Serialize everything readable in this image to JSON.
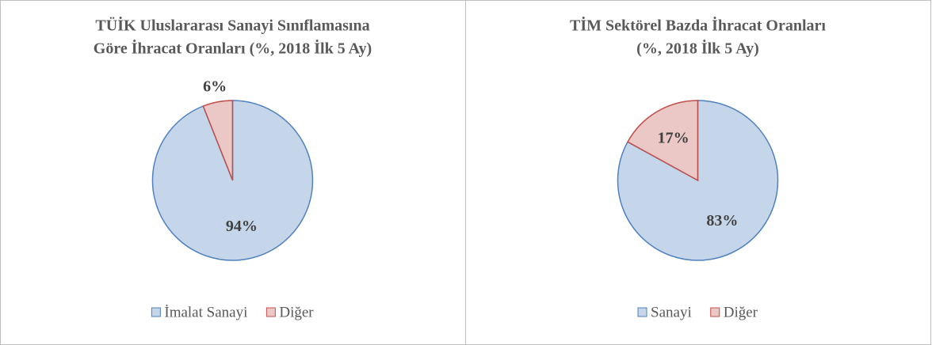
{
  "chart_data": [
    {
      "type": "pie",
      "title": [
        "TÜİK Uluslararası Sanayi Sınıflamasına",
        "Göre İhracat Oranları (%, 2018 İlk 5 Ay)"
      ],
      "categories": [
        "İmalat Sanayi",
        "Diğer"
      ],
      "values": [
        94,
        6
      ],
      "value_labels": [
        "94%",
        "6%"
      ],
      "colors": [
        "#4f81bd",
        "#c0504d"
      ]
    },
    {
      "type": "pie",
      "title": [
        "TİM Sektörel Bazda İhracat Oranları",
        "(%, 2018 İlk 5 Ay)"
      ],
      "categories": [
        "Sanayi",
        "Diğer"
      ],
      "values": [
        83,
        17
      ],
      "value_labels": [
        "83%",
        "17%"
      ],
      "colors": [
        "#4f81bd",
        "#c0504d"
      ]
    }
  ]
}
